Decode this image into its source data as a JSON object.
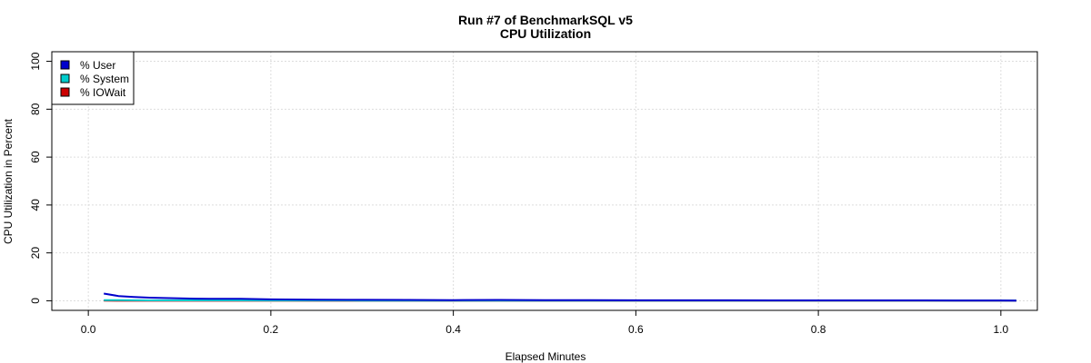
{
  "chart_data": {
    "type": "line",
    "title": "Run #7 of BenchmarkSQL v5",
    "subtitle": "CPU Utilization",
    "xlabel": "Elapsed Minutes",
    "ylabel": "CPU Utilization in Percent",
    "xlim": [
      -0.04,
      1.04
    ],
    "ylim": [
      -4,
      104
    ],
    "xticks": [
      0.0,
      0.2,
      0.4,
      0.6,
      0.8,
      1.0
    ],
    "xtick_labels": [
      "0.0",
      "0.2",
      "0.4",
      "0.6",
      "0.8",
      "1.0"
    ],
    "yticks": [
      0,
      20,
      40,
      60,
      80,
      100
    ],
    "ytick_labels": [
      "0",
      "20",
      "40",
      "60",
      "80",
      "100"
    ],
    "grid": true,
    "legend_position": "top-left",
    "legend": [
      {
        "label": "% User",
        "color": "#0000cc"
      },
      {
        "label": "% System",
        "color": "#00cccc"
      },
      {
        "label": "% IOWait",
        "color": "#cc0000"
      }
    ],
    "series": [
      {
        "name": "% User",
        "color": "#0000cc",
        "x": [
          0.017,
          0.033,
          0.05,
          0.067,
          0.083,
          0.1,
          0.117,
          0.133,
          0.15,
          0.167,
          0.2,
          0.25,
          0.3,
          0.35,
          0.4,
          0.45,
          0.5,
          0.55,
          0.6,
          0.65,
          0.7,
          0.75,
          0.8,
          0.85,
          0.9,
          0.95,
          1.0,
          1.017
        ],
        "y": [
          3.0,
          2.0,
          1.6,
          1.3,
          1.15,
          1.0,
          0.9,
          0.85,
          0.85,
          0.8,
          0.6,
          0.45,
          0.4,
          0.35,
          0.3,
          0.35,
          0.28,
          0.25,
          0.22,
          0.2,
          0.2,
          0.18,
          0.18,
          0.15,
          0.15,
          0.12,
          0.12,
          0.1
        ]
      },
      {
        "name": "% System",
        "color": "#00cccc",
        "x": [
          0.017,
          0.033,
          0.05,
          0.067,
          0.083,
          0.1,
          0.2,
          0.3,
          0.4,
          0.5,
          0.6,
          0.7,
          0.8,
          0.9,
          1.0,
          1.017
        ],
        "y": [
          0.3,
          0.25,
          0.2,
          0.18,
          0.16,
          0.15,
          0.12,
          0.1,
          0.1,
          0.08,
          0.08,
          0.07,
          0.06,
          0.06,
          0.05,
          0.05
        ]
      },
      {
        "name": "% IOWait",
        "color": "#cc0000",
        "x": [
          0.017,
          0.1,
          0.2,
          0.3,
          0.4,
          0.5,
          0.6,
          0.7,
          0.8,
          0.9,
          1.0,
          1.017
        ],
        "y": [
          0.05,
          0.03,
          0.02,
          0.02,
          0.01,
          0.01,
          0.01,
          0.01,
          0.01,
          0.01,
          0.01,
          0.01
        ]
      }
    ]
  }
}
